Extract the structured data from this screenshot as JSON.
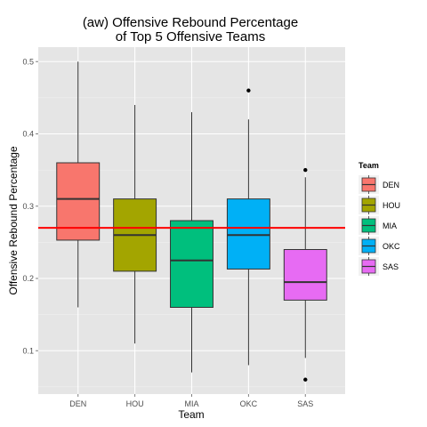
{
  "chart_data": {
    "type": "boxplot",
    "title_lines": [
      "(aw) Offensive Rebound Percentage",
      "of Top 5 Offensive Teams"
    ],
    "xlabel": "Team",
    "ylabel": "Offensive Rebound Percentage",
    "ylim": [
      0.04,
      0.52
    ],
    "yticks": [
      0.1,
      0.2,
      0.3,
      0.4,
      0.5
    ],
    "ytick_labels": [
      "0.1",
      "0.2",
      "0.3",
      "0.4",
      "0.5"
    ],
    "categories": [
      "DEN",
      "HOU",
      "MIA",
      "OKC",
      "SAS"
    ],
    "boxes": [
      {
        "team": "DEN",
        "min": 0.16,
        "q1": 0.253,
        "median": 0.31,
        "q3": 0.36,
        "max": 0.5,
        "outliers": []
      },
      {
        "team": "HOU",
        "min": 0.11,
        "q1": 0.21,
        "median": 0.26,
        "q3": 0.31,
        "max": 0.44,
        "outliers": []
      },
      {
        "team": "MIA",
        "min": 0.07,
        "q1": 0.16,
        "median": 0.225,
        "q3": 0.28,
        "max": 0.43,
        "outliers": []
      },
      {
        "team": "OKC",
        "min": 0.08,
        "q1": 0.213,
        "median": 0.26,
        "q3": 0.31,
        "max": 0.42,
        "outliers": [
          0.46
        ]
      },
      {
        "team": "SAS",
        "min": 0.09,
        "q1": 0.17,
        "median": 0.195,
        "q3": 0.24,
        "max": 0.34,
        "outliers": [
          0.35,
          0.06
        ]
      }
    ],
    "reference_line": {
      "y": 0.27,
      "color": "#ff0000"
    },
    "legend": {
      "title": "Team",
      "position": "right",
      "items": [
        {
          "label": "DEN",
          "color": "#f8766d"
        },
        {
          "label": "HOU",
          "color": "#a3a500"
        },
        {
          "label": "MIA",
          "color": "#00bf7d"
        },
        {
          "label": "OKC",
          "color": "#00b0f6"
        },
        {
          "label": "SAS",
          "color": "#e76bf3"
        }
      ]
    },
    "panel_background": "#e5e5e5",
    "grid": true
  }
}
